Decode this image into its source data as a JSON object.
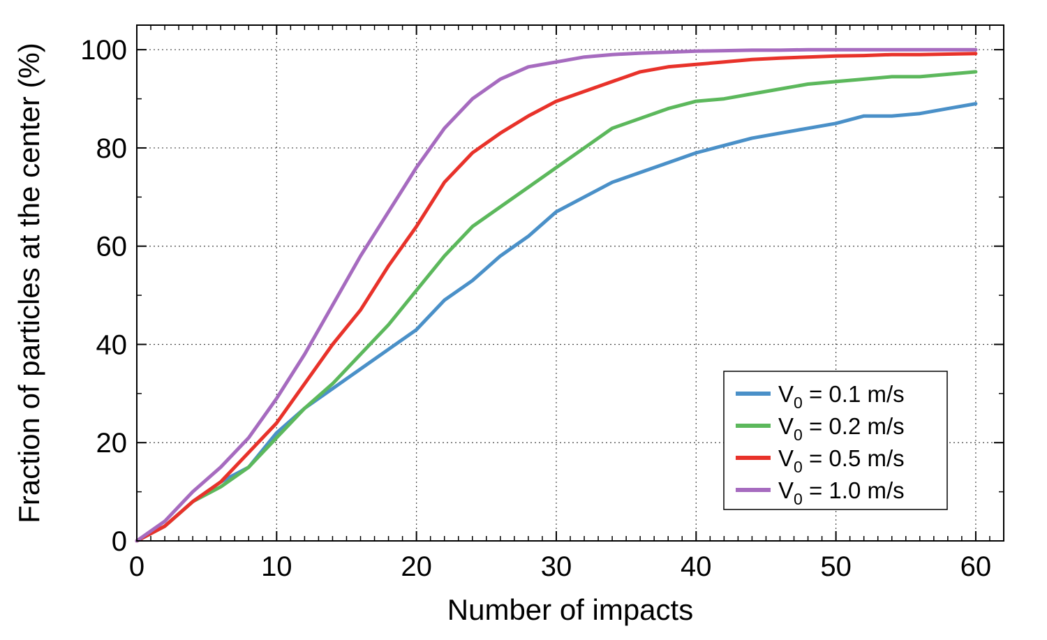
{
  "chart_data": {
    "type": "line",
    "xlabel": "Number of impacts",
    "ylabel": "Fraction of particles at the center (%)",
    "xlim": [
      0,
      62
    ],
    "ylim": [
      0,
      105
    ],
    "xticks": [
      0,
      10,
      20,
      30,
      40,
      50,
      60
    ],
    "yticks": [
      0,
      20,
      40,
      60,
      80,
      100
    ],
    "xtick_labels": [
      "0",
      "10",
      "20",
      "30",
      "40",
      "50",
      "60"
    ],
    "ytick_labels": [
      "0",
      "20",
      "40",
      "60",
      "80",
      "100"
    ],
    "grid": true,
    "grid_style": "dotted",
    "legend_position": "bottom-right",
    "series": [
      {
        "name": "V0 = 0.1 m/s",
        "legend_prefix": "V",
        "legend_sub": "0",
        "legend_suffix": " = 0.1 m/s",
        "color": "#4a90c8",
        "x": [
          0,
          2,
          4,
          6,
          8,
          10,
          12,
          14,
          16,
          18,
          20,
          22,
          24,
          26,
          28,
          30,
          32,
          34,
          36,
          38,
          40,
          42,
          44,
          46,
          48,
          50,
          52,
          54,
          56,
          58,
          60
        ],
        "y": [
          0,
          3,
          8,
          12,
          15,
          22,
          27,
          31,
          35,
          39,
          43,
          49,
          53,
          58,
          62,
          67,
          70,
          73,
          75,
          77,
          79,
          80.5,
          82,
          83,
          84,
          85,
          86.5,
          86.5,
          87,
          88,
          89
        ]
      },
      {
        "name": "V0 = 0.2 m/s",
        "legend_prefix": "V",
        "legend_sub": "0",
        "legend_suffix": " = 0.2 m/s",
        "color": "#5cb85c",
        "x": [
          0,
          2,
          4,
          6,
          8,
          10,
          12,
          14,
          16,
          18,
          20,
          22,
          24,
          26,
          28,
          30,
          32,
          34,
          36,
          38,
          40,
          42,
          44,
          46,
          48,
          50,
          52,
          54,
          56,
          58,
          60
        ],
        "y": [
          0,
          3,
          8,
          11,
          15,
          21,
          27,
          32,
          38,
          44,
          51,
          58,
          64,
          68,
          72,
          76,
          80,
          84,
          86,
          88,
          89.5,
          90,
          91,
          92,
          93,
          93.5,
          94,
          94.5,
          94.5,
          95,
          95.5
        ]
      },
      {
        "name": "V0 = 0.5 m/s",
        "legend_prefix": "V",
        "legend_sub": "0",
        "legend_suffix": " = 0.5 m/s",
        "color": "#e8322a",
        "x": [
          0,
          2,
          4,
          6,
          8,
          10,
          12,
          14,
          16,
          18,
          20,
          22,
          24,
          26,
          28,
          30,
          32,
          34,
          36,
          38,
          40,
          42,
          44,
          46,
          48,
          50,
          52,
          54,
          56,
          58,
          60
        ],
        "y": [
          0,
          3,
          8,
          12,
          18,
          24,
          32,
          40,
          47,
          56,
          64,
          73,
          79,
          83,
          86.5,
          89.5,
          91.5,
          93.5,
          95.5,
          96.5,
          97,
          97.5,
          98,
          98.3,
          98.5,
          98.7,
          98.8,
          99,
          99,
          99.1,
          99.2
        ]
      },
      {
        "name": "V0 = 1.0 m/s",
        "legend_prefix": "V",
        "legend_sub": "0",
        "legend_suffix": " = 1.0 m/s",
        "color": "#a66bbf",
        "x": [
          0,
          2,
          4,
          6,
          8,
          10,
          12,
          14,
          16,
          18,
          20,
          22,
          24,
          26,
          28,
          30,
          32,
          34,
          36,
          38,
          40,
          42,
          44,
          46,
          48,
          50,
          52,
          54,
          56,
          58,
          60
        ],
        "y": [
          0,
          4,
          10,
          15,
          21,
          29,
          38,
          48,
          58,
          67,
          76,
          84,
          90,
          94,
          96.5,
          97.5,
          98.5,
          99,
          99.3,
          99.5,
          99.7,
          99.8,
          99.9,
          99.9,
          100,
          100,
          100,
          100,
          100,
          100,
          100
        ]
      }
    ]
  }
}
